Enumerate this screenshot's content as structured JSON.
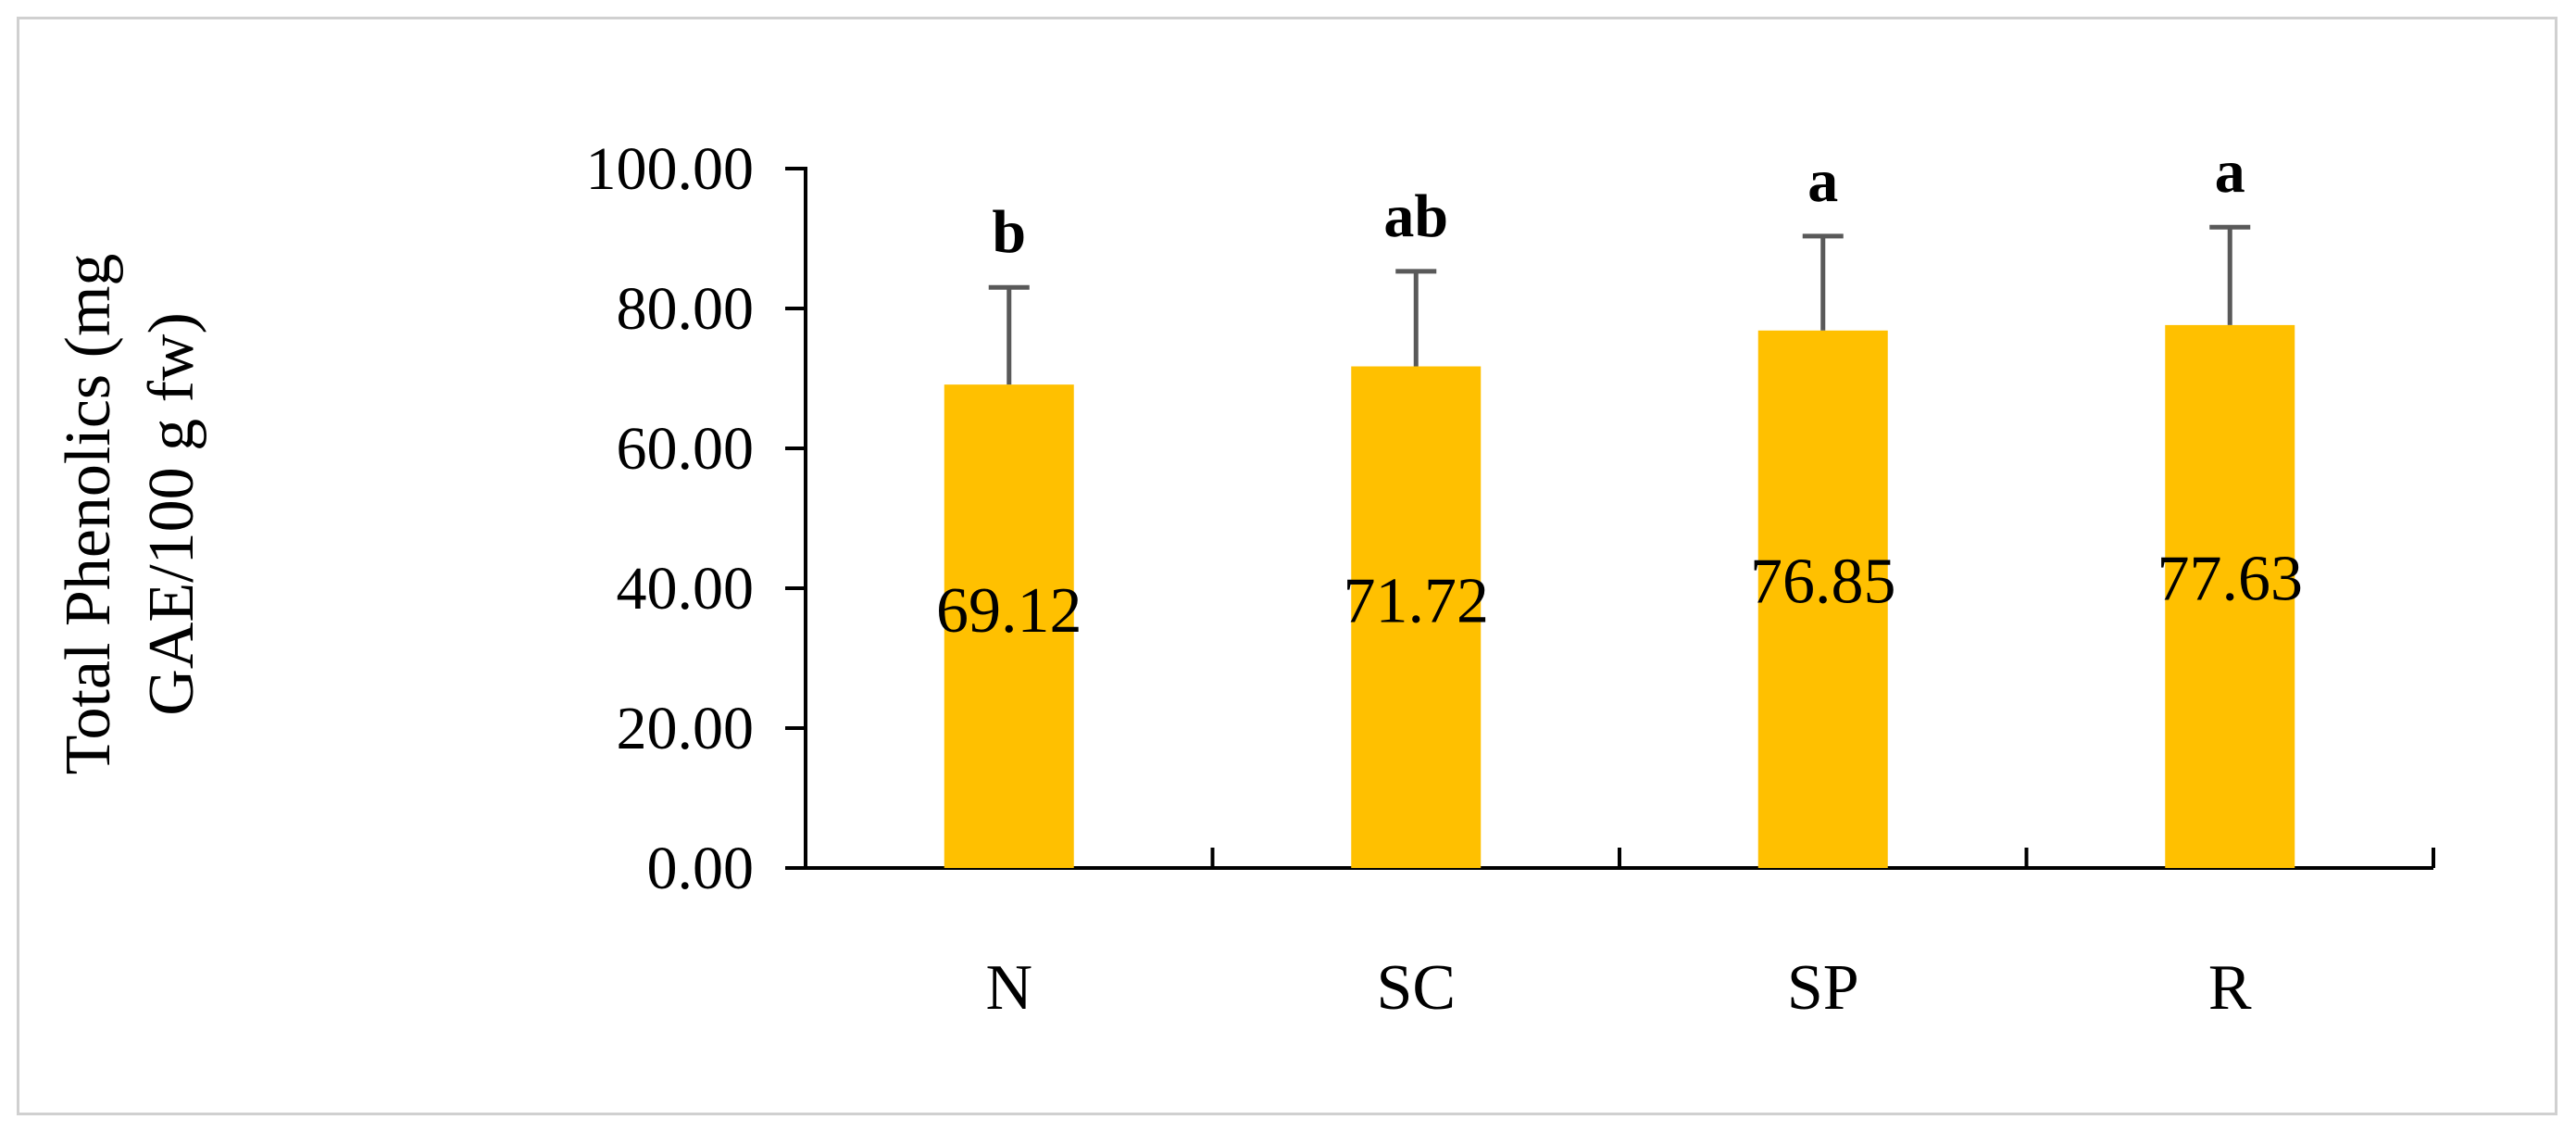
{
  "chart_data": {
    "type": "bar",
    "title": "",
    "xlabel": "",
    "ylabel_lines": [
      "Total Phenolics (mg",
      "GAE/100 g fw)"
    ],
    "categories": [
      "N",
      "SC",
      "SP",
      "R"
    ],
    "values": [
      69.12,
      71.72,
      76.85,
      77.63
    ],
    "value_labels": [
      "69.12",
      "71.72",
      "76.85",
      "77.63"
    ],
    "error_bars": [
      13.9,
      13.6,
      13.5,
      14.0
    ],
    "significance_letters": [
      "b",
      "ab",
      "a",
      "a"
    ],
    "ylim": [
      0,
      100
    ],
    "yticks": [
      0,
      20,
      40,
      60,
      80,
      100
    ],
    "ytick_labels": [
      "0.00",
      "20.00",
      "40.00",
      "60.00",
      "80.00",
      "100.00"
    ],
    "bar_color": "#FFC000",
    "error_bar_color": "#595959",
    "axis_color": "#000000",
    "grid": false,
    "legend": "none"
  }
}
